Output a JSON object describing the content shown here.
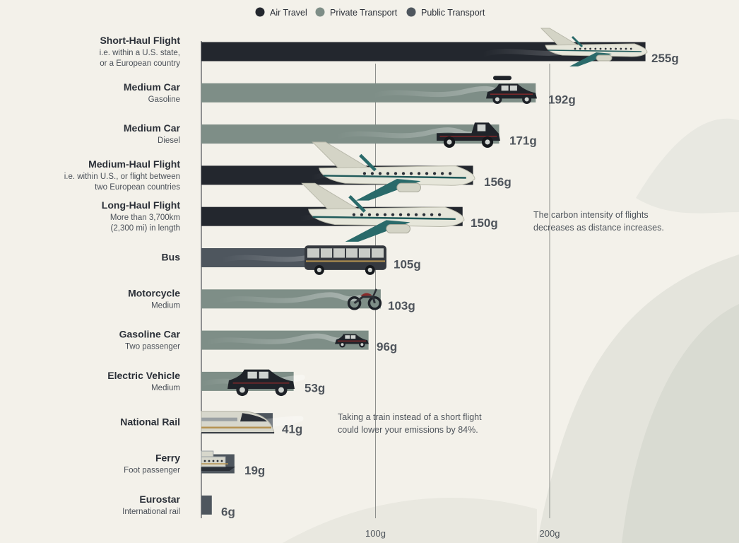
{
  "chart_data": {
    "type": "bar",
    "orientation": "horizontal",
    "title": "",
    "xlabel": "",
    "ylabel": "",
    "xlim": [
      0,
      260
    ],
    "x_ticks": [
      {
        "value": 100,
        "label": "100g"
      },
      {
        "value": 200,
        "label": "200g"
      }
    ],
    "grid": "vertical gridlines at ticks",
    "legend": {
      "placement": "top",
      "entries": [
        {
          "key": "air",
          "label": "Air Travel",
          "color": "#23272e"
        },
        {
          "key": "private",
          "label": "Private Transport",
          "color": "#7e8e87"
        },
        {
          "key": "public",
          "label": "Public Transport",
          "color": "#4e565e"
        }
      ]
    },
    "bars": [
      {
        "name": "Short-Haul Flight",
        "sub": [
          "i.e. within a U.S. state,",
          "or a European country"
        ],
        "value": 255,
        "value_label": "255g",
        "category": "air",
        "icon": "plane-icon"
      },
      {
        "name": "Medium Car",
        "sub": [
          "Gasoline"
        ],
        "value": 192,
        "value_label": "192g",
        "category": "private",
        "icon": "car-icon"
      },
      {
        "name": "Medium Car",
        "sub": [
          "Diesel"
        ],
        "value": 171,
        "value_label": "171g",
        "category": "private",
        "icon": "pickup-truck-icon"
      },
      {
        "name": "Medium-Haul Flight",
        "sub": [
          "i.e. within U.S., or flight between",
          "two European countries"
        ],
        "value": 156,
        "value_label": "156g",
        "category": "air",
        "icon": "plane-icon"
      },
      {
        "name": "Long-Haul Flight",
        "sub": [
          "More than 3,700km",
          "(2,300 mi) in length"
        ],
        "value": 150,
        "value_label": "150g",
        "category": "air",
        "icon": "plane-icon"
      },
      {
        "name": "Bus",
        "sub": [],
        "value": 105,
        "value_label": "105g",
        "category": "public",
        "icon": "bus-icon"
      },
      {
        "name": "Motorcycle",
        "sub": [
          "Medium"
        ],
        "value": 103,
        "value_label": "103g",
        "category": "private",
        "icon": "motorcycle-icon"
      },
      {
        "name": "Gasoline Car",
        "sub": [
          "Two passenger"
        ],
        "value": 96,
        "value_label": "96g",
        "category": "private",
        "icon": "small-car-icon"
      },
      {
        "name": "Electric Vehicle",
        "sub": [
          "Medium"
        ],
        "value": 53,
        "value_label": "53g",
        "category": "private",
        "icon": "car-icon"
      },
      {
        "name": "National Rail",
        "sub": [],
        "value": 41,
        "value_label": "41g",
        "category": "public",
        "icon": "train-icon"
      },
      {
        "name": "Ferry",
        "sub": [
          "Foot passenger"
        ],
        "value": 19,
        "value_label": "19g",
        "category": "public",
        "icon": "ferry-icon"
      },
      {
        "name": "Eurostar",
        "sub": [
          "International rail"
        ],
        "value": 6,
        "value_label": "6g",
        "category": "public",
        "icon": ""
      }
    ],
    "annotations": [
      {
        "lines": [
          "The carbon intensity of flights",
          "decreases as distance increases."
        ]
      },
      {
        "lines": [
          "Taking a train instead of a short flight",
          "could lower your emissions by 84%."
        ]
      }
    ]
  }
}
